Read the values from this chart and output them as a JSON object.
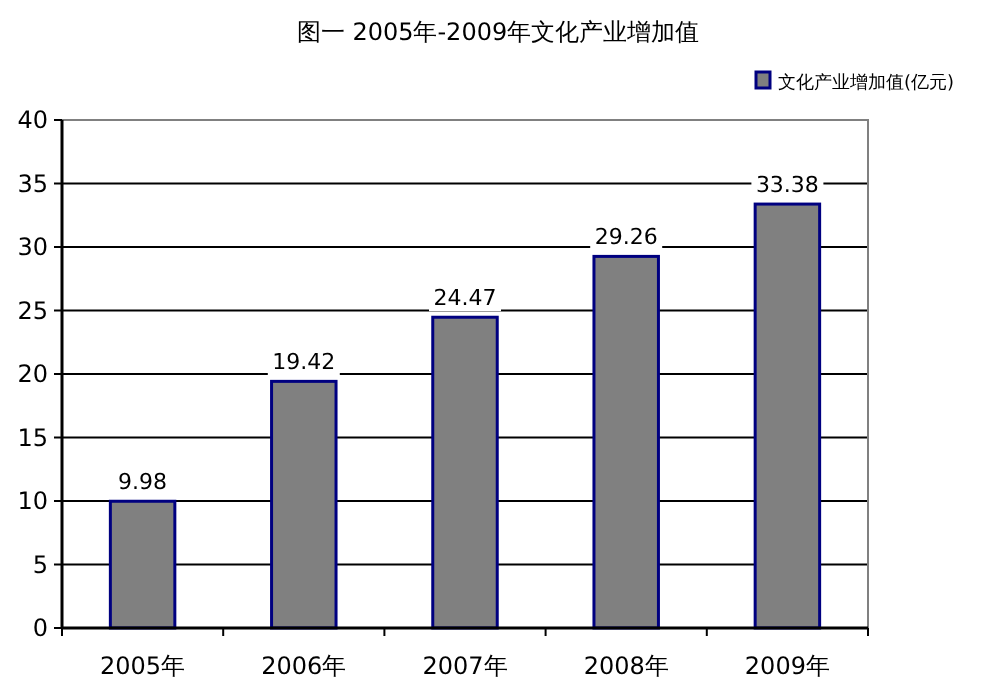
{
  "chart_data": {
    "type": "bar",
    "title": "图一 2005年-2009年文化产业增加值",
    "categories": [
      "2005年",
      "2006年",
      "2007年",
      "2008年",
      "2009年"
    ],
    "series": [
      {
        "name": "文化产业增加值(亿元)",
        "color": "#808080",
        "values": [
          9.98,
          19.42,
          24.47,
          29.26,
          33.38
        ]
      }
    ],
    "ylim": [
      0,
      40
    ],
    "yticks": [
      0,
      5,
      10,
      15,
      20,
      25,
      30,
      35,
      40
    ],
    "grid": "y",
    "legend": "top right",
    "data_labels": true
  }
}
